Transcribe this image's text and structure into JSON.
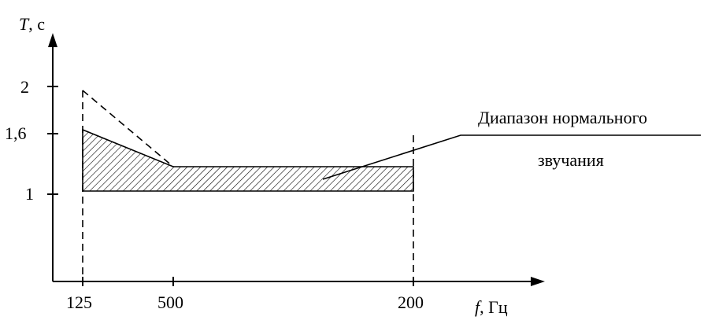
{
  "y_axis": {
    "label_italic": "T",
    "label_unit": ", с"
  },
  "x_axis": {
    "label_italic": "f",
    "label_unit": ", Гц"
  },
  "y_ticks": [
    "2",
    "1,6",
    "1"
  ],
  "x_ticks": [
    "125",
    "500",
    "200"
  ],
  "region_label": {
    "line1": "Диапазон нормального",
    "line2": "звучания"
  }
}
